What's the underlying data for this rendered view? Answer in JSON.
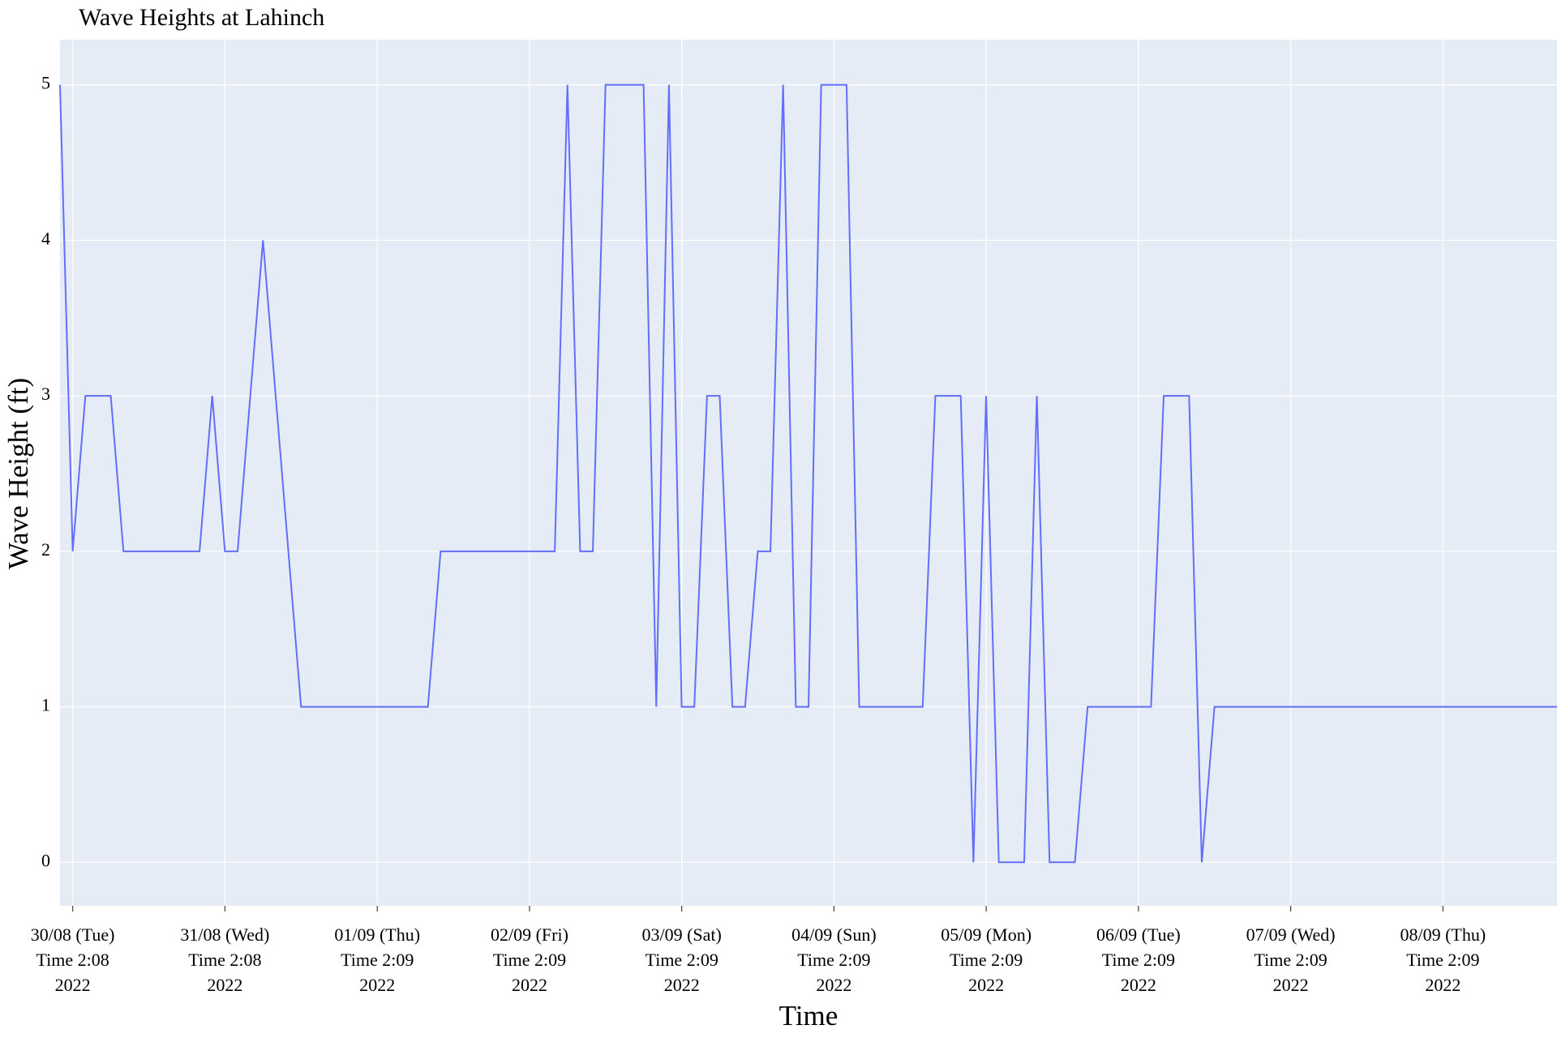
{
  "chart_data": {
    "type": "line",
    "title": "Wave Heights at Lahinch",
    "x_label": "Time",
    "y_label": "Wave Height (ft)",
    "x": [
      "2022-08-30 00:08",
      "2022-08-30 02:08",
      "2022-08-30 04:08",
      "2022-08-30 06:08",
      "2022-08-30 08:08",
      "2022-08-30 10:08",
      "2022-08-30 12:08",
      "2022-08-30 14:08",
      "2022-08-30 16:08",
      "2022-08-30 18:08",
      "2022-08-30 20:08",
      "2022-08-30 22:08",
      "2022-08-31 00:08",
      "2022-08-31 02:08",
      "2022-08-31 04:08",
      "2022-08-31 06:08",
      "2022-08-31 08:08",
      "2022-08-31 10:08",
      "2022-08-31 12:08",
      "2022-08-31 14:08",
      "2022-08-31 16:08",
      "2022-08-31 18:08",
      "2022-08-31 20:08",
      "2022-08-31 22:08",
      "2022-09-01 00:08",
      "2022-09-01 02:08",
      "2022-09-01 04:08",
      "2022-09-01 06:08",
      "2022-09-01 08:08",
      "2022-09-01 10:08",
      "2022-09-01 12:08",
      "2022-09-01 14:08",
      "2022-09-01 16:08",
      "2022-09-01 18:08",
      "2022-09-01 20:08",
      "2022-09-01 22:08",
      "2022-09-02 00:08",
      "2022-09-02 02:08",
      "2022-09-02 04:08",
      "2022-09-02 06:08",
      "2022-09-02 08:08",
      "2022-09-02 10:08",
      "2022-09-02 12:08",
      "2022-09-02 14:08",
      "2022-09-02 16:08",
      "2022-09-02 18:08",
      "2022-09-02 20:08",
      "2022-09-02 22:08",
      "2022-09-03 00:08",
      "2022-09-03 02:08",
      "2022-09-03 04:08",
      "2022-09-03 06:08",
      "2022-09-03 08:08",
      "2022-09-03 10:08",
      "2022-09-03 12:08",
      "2022-09-03 14:08",
      "2022-09-03 16:08",
      "2022-09-03 18:08",
      "2022-09-03 20:08",
      "2022-09-03 22:08",
      "2022-09-04 00:08",
      "2022-09-04 02:08",
      "2022-09-04 04:08",
      "2022-09-04 06:08",
      "2022-09-04 08:08",
      "2022-09-04 10:08",
      "2022-09-04 12:08",
      "2022-09-04 14:08",
      "2022-09-04 16:08",
      "2022-09-04 18:08",
      "2022-09-04 20:08",
      "2022-09-04 22:08",
      "2022-09-05 00:08",
      "2022-09-05 02:08",
      "2022-09-05 04:08",
      "2022-09-05 06:08",
      "2022-09-05 08:08",
      "2022-09-05 10:08",
      "2022-09-05 12:08",
      "2022-09-05 14:08",
      "2022-09-05 16:08",
      "2022-09-05 18:08",
      "2022-09-05 20:08",
      "2022-09-05 22:08",
      "2022-09-06 00:08",
      "2022-09-06 02:08",
      "2022-09-06 04:08",
      "2022-09-06 06:08",
      "2022-09-06 08:08",
      "2022-09-06 10:08",
      "2022-09-06 12:08",
      "2022-09-06 14:08",
      "2022-09-06 16:08",
      "2022-09-06 18:08",
      "2022-09-06 20:08",
      "2022-09-06 22:08",
      "2022-09-07 00:08",
      "2022-09-07 02:08",
      "2022-09-07 04:08",
      "2022-09-07 06:08",
      "2022-09-07 08:08",
      "2022-09-07 10:08",
      "2022-09-07 12:08",
      "2022-09-07 14:08",
      "2022-09-07 16:08",
      "2022-09-07 18:08",
      "2022-09-07 20:08",
      "2022-09-07 22:08",
      "2022-09-08 00:08",
      "2022-09-08 02:08",
      "2022-09-08 04:08",
      "2022-09-08 06:08",
      "2022-09-08 08:08",
      "2022-09-08 10:08",
      "2022-09-08 12:08",
      "2022-09-08 14:08",
      "2022-09-08 16:08",
      "2022-09-08 18:08",
      "2022-09-08 20:08"
    ],
    "series": [
      {
        "name": "Wave Height",
        "color": "#636efa",
        "values": [
          5,
          2,
          3,
          3,
          3,
          2,
          2,
          2,
          2,
          2,
          2,
          2,
          3,
          2,
          2,
          3,
          4,
          3,
          2,
          1,
          1,
          1,
          1,
          1,
          1,
          1,
          1,
          1,
          1,
          1,
          2,
          2,
          2,
          2,
          2,
          2,
          2,
          2,
          2,
          2,
          5,
          2,
          2,
          5,
          5,
          5,
          5,
          1,
          5,
          1,
          1,
          3,
          3,
          1,
          1,
          2,
          2,
          5,
          1,
          1,
          5,
          5,
          5,
          1,
          1,
          1,
          1,
          1,
          1,
          3,
          3,
          3,
          0,
          3,
          0,
          0,
          0,
          3,
          0,
          0,
          0,
          1,
          1,
          1,
          1,
          1,
          1,
          3,
          3,
          3,
          0,
          1,
          1,
          1,
          1,
          1,
          1,
          1,
          1,
          1,
          1,
          1,
          1,
          1,
          1,
          1,
          1,
          1,
          1,
          1,
          1,
          1,
          1,
          1,
          1,
          1,
          1,
          1,
          1
        ]
      }
    ],
    "xlim": [
      "2022-08-30 00:08",
      "2022-09-08 20:08"
    ],
    "xticks": [
      {
        "value": "2022-08-30 02:08",
        "label": "30/08 (Tue)\nTime 2:08\n2022"
      },
      {
        "value": "2022-08-31 02:08",
        "label": "31/08 (Wed)\nTime 2:08\n2022"
      },
      {
        "value": "2022-09-01 02:09",
        "label": "01/09 (Thu)\nTime 2:09\n2022"
      },
      {
        "value": "2022-09-02 02:09",
        "label": "02/09 (Fri)\nTime 2:09\n2022"
      },
      {
        "value": "2022-09-03 02:09",
        "label": "03/09 (Sat)\nTime 2:09\n2022"
      },
      {
        "value": "2022-09-04 02:09",
        "label": "04/09 (Sun)\nTime 2:09\n2022"
      },
      {
        "value": "2022-09-05 02:09",
        "label": "05/09 (Mon)\nTime 2:09\n2022"
      },
      {
        "value": "2022-09-06 02:09",
        "label": "06/09 (Tue)\nTime 2:09\n2022"
      },
      {
        "value": "2022-09-07 02:09",
        "label": "07/09 (Wed)\nTime 2:09\n2022"
      },
      {
        "value": "2022-09-08 02:09",
        "label": "08/09 (Thu)\nTime 2:09\n2022"
      }
    ],
    "ylim": [
      -0.28,
      5.29
    ],
    "yticks": [
      0,
      1,
      2,
      3,
      4,
      5
    ],
    "grid": true,
    "background": "#e5ecf6"
  }
}
